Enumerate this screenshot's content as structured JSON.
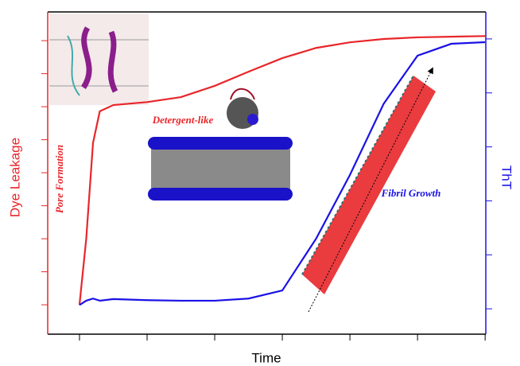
{
  "chart_data": {
    "type": "line",
    "xlabel": "Time",
    "ylabel": "Dye Leakage",
    "y2label": "ThT",
    "annotations": [
      "Pore Formation",
      "Detergent-like",
      "Fibril Growth"
    ],
    "x": [
      0,
      0.1,
      0.2,
      0.3,
      0.5,
      1,
      1.5,
      2,
      2.5,
      3,
      3.5,
      4,
      4.5,
      5,
      5.5,
      6
    ],
    "series": [
      {
        "name": "Dye Leakage",
        "color": "#e8262a",
        "values": [
          0,
          2.0,
          4.9,
          5.86,
          6.05,
          6.14,
          6.29,
          6.63,
          7.06,
          7.47,
          7.78,
          7.95,
          8.05,
          8.1,
          8.12,
          8.14
        ]
      },
      {
        "name": "ThT",
        "color": "#1a12e6",
        "axis": "y2",
        "values": [
          0.07,
          0.15,
          0.19,
          0.15,
          0.18,
          0.16,
          0.15,
          0.15,
          0.19,
          0.34,
          1.3,
          2.48,
          3.8,
          4.69,
          4.91,
          4.94
        ]
      }
    ],
    "xlim": [
      -0.47,
      6.01
    ],
    "xticks": [
      0,
      1,
      2,
      3,
      4,
      5,
      6
    ],
    "ylim": [
      -0.89,
      8.87
    ],
    "yticks": [
      0,
      1,
      2,
      3,
      4,
      5,
      6,
      7,
      8
    ],
    "y2lim": [
      -0.47,
      5.5
    ],
    "y2ticks": [
      0,
      1,
      2,
      3,
      4,
      5
    ]
  }
}
